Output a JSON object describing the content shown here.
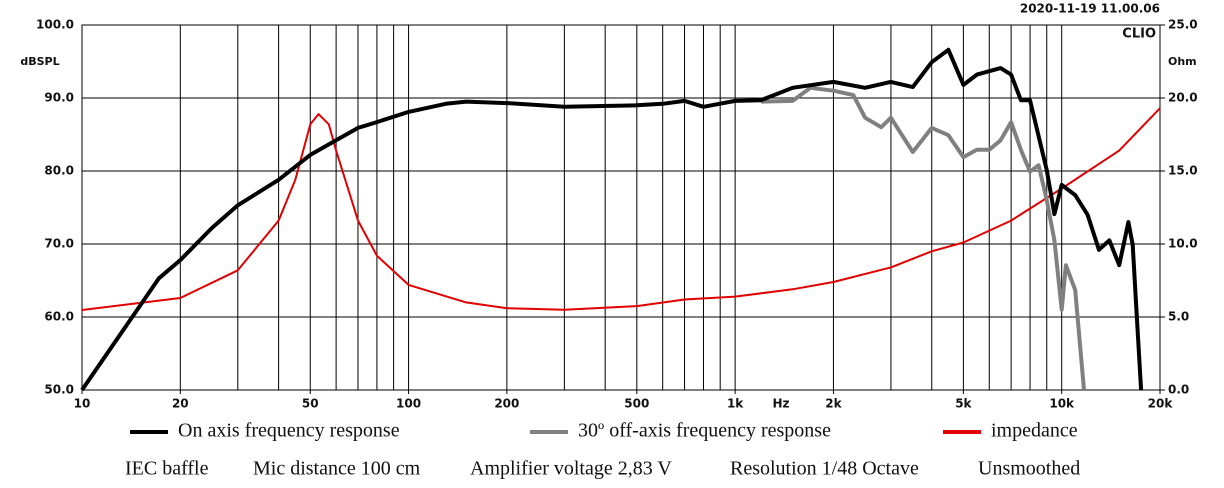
{
  "chart_data": {
    "type": "line",
    "xscale": "log",
    "timestamp": "2020-11-19 11.00.06",
    "brand": "CLIO",
    "xlabel": "Hz",
    "ylabel": "dBSPL",
    "y2label": "Ohm",
    "xlim": [
      10,
      20000
    ],
    "xticks": [
      10,
      20,
      50,
      100,
      200,
      500,
      {
        "value": 1000,
        "label": "1k"
      },
      {
        "value": 2000,
        "label": "2k"
      },
      {
        "value": 5000,
        "label": "5k"
      },
      {
        "value": 10000,
        "label": "10k"
      },
      {
        "value": 20000,
        "label": "20k"
      }
    ],
    "xgrid": [
      20,
      30,
      40,
      50,
      60,
      70,
      80,
      90,
      100,
      200,
      300,
      400,
      500,
      600,
      700,
      800,
      900,
      1000,
      2000,
      3000,
      4000,
      5000,
      6000,
      7000,
      8000,
      9000,
      10000
    ],
    "ylim": [
      50,
      100
    ],
    "yticks": [
      {
        "value": 50,
        "label": "50.0"
      },
      {
        "value": 60,
        "label": "60.0"
      },
      {
        "value": 70,
        "label": "70.0"
      },
      {
        "value": 80,
        "label": "80.0"
      },
      {
        "value": 90,
        "label": "90.0"
      },
      {
        "value": 100,
        "label": "100.0"
      }
    ],
    "y2lim": [
      0,
      25
    ],
    "y2ticks": [
      {
        "value": 0,
        "label": "0.0"
      },
      {
        "value": 5,
        "label": "5.0"
      },
      {
        "value": 10,
        "label": "10.0"
      },
      {
        "value": 15,
        "label": "15.0"
      },
      {
        "value": 20,
        "label": "20.0"
      },
      {
        "value": 25,
        "label": "25.0"
      }
    ],
    "grid": true,
    "series": [
      {
        "name": "On axis frequency response",
        "color": "#000000",
        "x": [
          10,
          17.2,
          20,
          25,
          30,
          40,
          50,
          60,
          70,
          80,
          100,
          130,
          150,
          200,
          300,
          500,
          600,
          700,
          800,
          1000,
          1200,
          1500,
          2000,
          2500,
          3000,
          3500,
          4000,
          4500,
          5000,
          5500,
          6500,
          7000,
          7500,
          8000,
          9000,
          9500,
          10000,
          11000,
          12000,
          13000,
          14000,
          15000,
          16000,
          16500,
          17000,
          17500
        ],
        "values": [
          50,
          65.3,
          67.8,
          72.2,
          75.3,
          78.8,
          82.2,
          84.2,
          85.9,
          86.7,
          88.1,
          89.2,
          89.5,
          89.3,
          88.8,
          89.0,
          89.2,
          89.6,
          88.8,
          89.6,
          89.7,
          91.4,
          92.2,
          91.4,
          92.2,
          91.5,
          94.9,
          96.6,
          91.8,
          93.2,
          94.1,
          93.2,
          89.7,
          89.7,
          80.1,
          74.1,
          78.1,
          76.7,
          74.0,
          69.2,
          70.5,
          67.1,
          73.0,
          69.9,
          59.6,
          50
        ]
      },
      {
        "name": "30º off-axis frequency response",
        "color": "#808080",
        "x": [
          1200,
          1500,
          1700,
          2000,
          2300,
          2500,
          2800,
          3000,
          3500,
          4000,
          4500,
          5000,
          5500,
          6000,
          6500,
          7000,
          7500,
          8000,
          8500,
          9000,
          9500,
          10000,
          10300,
          11000,
          11700
        ],
        "values": [
          89.5,
          89.6,
          91.4,
          91.0,
          90.4,
          87.3,
          86.0,
          87.3,
          82.6,
          85.9,
          84.9,
          81.9,
          82.9,
          82.9,
          84.2,
          86.7,
          82.9,
          79.9,
          80.8,
          76.0,
          70.5,
          61.0,
          67.1,
          63.7,
          50
        ]
      },
      {
        "name": "impedance",
        "color": "#e00000",
        "axis": "y2",
        "x": [
          10,
          20,
          30,
          40,
          45,
          50,
          53,
          57,
          60,
          70,
          80,
          100,
          150,
          200,
          300,
          500,
          700,
          1000,
          1500,
          2000,
          3000,
          4000,
          5000,
          7000,
          10000,
          15000,
          20000
        ],
        "values": [
          5.48,
          6.3,
          8.2,
          11.6,
          14.4,
          18.2,
          18.9,
          18.2,
          16.4,
          11.6,
          9.2,
          7.2,
          6.0,
          5.6,
          5.5,
          5.75,
          6.2,
          6.4,
          6.9,
          7.4,
          8.4,
          9.5,
          10.1,
          11.6,
          13.8,
          16.4,
          19.3
        ]
      }
    ],
    "notes": [
      "IEC baffle",
      "Mic distance 100 cm",
      "Amplifier voltage 2,83 V",
      "Resolution 1/48 Octave",
      "Unsmoothed"
    ]
  }
}
